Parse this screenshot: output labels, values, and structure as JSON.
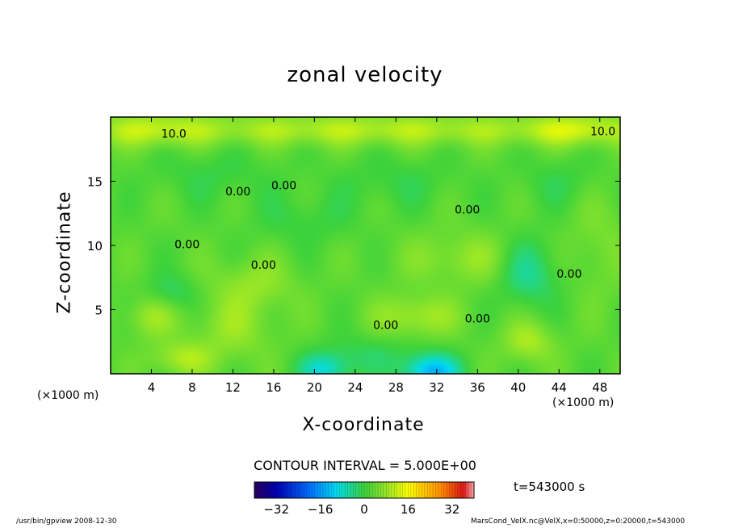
{
  "chart_data": {
    "type": "heatmap",
    "title": "zonal velocity",
    "xlabel": "X-coordinate",
    "ylabel": "Z-coordinate",
    "x_unit": "(×1000 m)",
    "x_ticks": [
      4,
      8,
      12,
      16,
      20,
      24,
      28,
      32,
      36,
      40,
      44,
      48
    ],
    "y_ticks": [
      5,
      10,
      15
    ],
    "xlim": [
      0,
      50
    ],
    "ylim": [
      0,
      20
    ],
    "contour_interval_label": "CONTOUR INTERVAL = 5.000E+00",
    "contour_labels": [
      {
        "text": "10.0",
        "x": 6.2,
        "z": 18.7
      },
      {
        "text": "10.0",
        "x": 48.3,
        "z": 18.9
      },
      {
        "text": "0.00",
        "x": 17.0,
        "z": 14.7
      },
      {
        "text": "0.00",
        "x": 12.5,
        "z": 14.2
      },
      {
        "text": "0.00",
        "x": 35.0,
        "z": 12.8
      },
      {
        "text": "0.00",
        "x": 7.5,
        "z": 10.1
      },
      {
        "text": "0.00",
        "x": 15.0,
        "z": 8.5
      },
      {
        "text": "0.00",
        "x": 27.0,
        "z": 3.8
      },
      {
        "text": "0.00",
        "x": 36.0,
        "z": 4.3
      },
      {
        "text": "0.00",
        "x": 45.0,
        "z": 7.8
      }
    ],
    "features": [
      {
        "value": 8,
        "x": 25,
        "z": 19,
        "sx": 24,
        "sz": 1.2
      },
      {
        "value": 7,
        "x": 46,
        "z": 19,
        "sx": 5,
        "sz": 1.2
      },
      {
        "value": 6,
        "x": 4,
        "z": 19,
        "sx": 5,
        "sz": 1.3
      },
      {
        "value": 6,
        "x": 4,
        "z": 4.5,
        "sx": 2.5,
        "sz": 1.6
      },
      {
        "value": 7,
        "x": 7,
        "z": 1.2,
        "sx": 3,
        "sz": 1.3
      },
      {
        "value": 5,
        "x": 12,
        "z": 3.5,
        "sx": 4,
        "sz": 2.5
      },
      {
        "value": 7,
        "x": 30,
        "z": 4.5,
        "sx": 4,
        "sz": 1.6
      },
      {
        "value": 5,
        "x": 14,
        "z": 7,
        "sx": 4,
        "sz": 2
      },
      {
        "value": 5,
        "x": 35,
        "z": 9,
        "sx": 6,
        "sz": 2
      },
      {
        "value": 7,
        "x": 41,
        "z": 2.5,
        "sx": 2.5,
        "sz": 1.6
      },
      {
        "value": 3,
        "x": 48,
        "z": 10,
        "sx": 3,
        "sz": 4
      },
      {
        "value": -8,
        "x": 41,
        "z": 8,
        "sx": 3,
        "sz": 2.6
      },
      {
        "value": -5,
        "x": 6,
        "z": 6.3,
        "sx": 2.5,
        "sz": 1.5
      },
      {
        "value": -16,
        "x": 31.5,
        "z": 0.1,
        "sx": 2.8,
        "sz": 1.4
      },
      {
        "value": -10,
        "x": 21,
        "z": 0.3,
        "sx": 2.5,
        "sz": 1.2
      },
      {
        "value": -4,
        "x": 25,
        "z": 1.5,
        "sx": 5,
        "sz": 1.5
      },
      {
        "value": -3,
        "x": 10,
        "z": 15.5,
        "sx": 6,
        "sz": 2
      },
      {
        "value": -3,
        "x": 28,
        "z": 15,
        "sx": 6,
        "sz": 2
      },
      {
        "value": -3,
        "x": 19,
        "z": 12,
        "sx": 5,
        "sz": 2
      },
      {
        "value": -3,
        "x": 44,
        "z": 15,
        "sx": 4,
        "sz": 2
      }
    ],
    "colorbar": {
      "ticks": [
        -32,
        -16,
        0,
        16,
        32
      ],
      "range": [
        -40,
        40
      ]
    }
  },
  "time_label": "t=543000 s",
  "footer_left": "/usr/bin/gpview   2008-12-30",
  "footer_right": "MarsCond_VelX.nc@VelX,x=0:50000,z=0:20000,t=543000",
  "colors": {
    "frame": "#000000",
    "contour": "#000000",
    "background": "#ffffff"
  }
}
